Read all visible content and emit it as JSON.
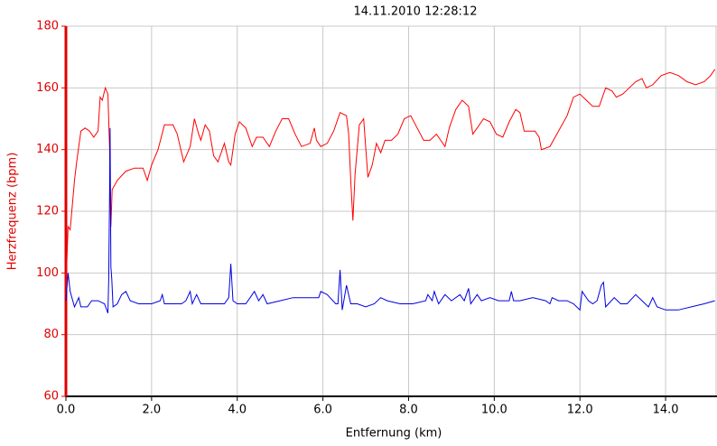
{
  "chart_data": {
    "type": "line",
    "title": "14.11.2010 12:28:12",
    "x_label": "Entfernung (km)",
    "y_label": "Herzfrequenz (bpm)",
    "xlim": [
      0,
      15.2
    ],
    "ylim": [
      60,
      180
    ],
    "xticks": [
      {
        "value": 0,
        "label": "0.0"
      },
      {
        "value": 2,
        "label": "2.0"
      },
      {
        "value": 4,
        "label": "4.0"
      },
      {
        "value": 6,
        "label": "6.0"
      },
      {
        "value": 8,
        "label": "8.0"
      },
      {
        "value": 10,
        "label": "10.0"
      },
      {
        "value": 12,
        "label": "12.0"
      },
      {
        "value": 14,
        "label": "14.0"
      }
    ],
    "yticks": [
      60,
      80,
      100,
      120,
      140,
      160,
      180
    ],
    "grid": true,
    "y_axis_color": "#e00000",
    "series": [
      {
        "color": "#ff0000",
        "x": [
          0.0,
          0.05,
          0.1,
          0.15,
          0.2,
          0.25,
          0.35,
          0.45,
          0.55,
          0.65,
          0.75,
          0.8,
          0.85,
          0.92,
          0.98,
          1.02,
          1.05,
          1.08,
          1.2,
          1.4,
          1.6,
          1.8,
          1.9,
          2.0,
          2.15,
          2.3,
          2.5,
          2.6,
          2.75,
          2.9,
          3.0,
          3.1,
          3.15,
          3.25,
          3.35,
          3.45,
          3.55,
          3.7,
          3.8,
          3.85,
          3.95,
          4.05,
          4.2,
          4.35,
          4.45,
          4.6,
          4.75,
          4.9,
          5.05,
          5.2,
          5.35,
          5.5,
          5.7,
          5.8,
          5.85,
          5.95,
          6.1,
          6.25,
          6.4,
          6.55,
          6.6,
          6.65,
          6.7,
          6.75,
          6.85,
          6.95,
          7.05,
          7.15,
          7.25,
          7.35,
          7.45,
          7.6,
          7.75,
          7.9,
          8.05,
          8.2,
          8.35,
          8.5,
          8.65,
          8.75,
          8.85,
          8.95,
          9.1,
          9.25,
          9.4,
          9.5,
          9.6,
          9.75,
          9.9,
          10.05,
          10.2,
          10.35,
          10.5,
          10.6,
          10.7,
          10.85,
          10.95,
          11.05,
          11.1,
          11.3,
          11.5,
          11.7,
          11.85,
          12.0,
          12.15,
          12.3,
          12.45,
          12.6,
          12.75,
          12.85,
          13.0,
          13.15,
          13.3,
          13.45,
          13.55,
          13.7,
          13.9,
          14.1,
          14.3,
          14.5,
          14.7,
          14.9,
          15.05,
          15.15
        ],
        "values": [
          95,
          115,
          114,
          122,
          130,
          136,
          146,
          147,
          146,
          144,
          146,
          157,
          156,
          160,
          158,
          140,
          115,
          127,
          130,
          133,
          134,
          134,
          130,
          135,
          140,
          148,
          148,
          145,
          136,
          141,
          150,
          145,
          143,
          148,
          146,
          138,
          136,
          142,
          136,
          135,
          145,
          149,
          147,
          141,
          144,
          144,
          141,
          146,
          150,
          150,
          145,
          141,
          142,
          147,
          143,
          141,
          142,
          146,
          152,
          151,
          145,
          130,
          117,
          132,
          148,
          150,
          131,
          135,
          142,
          139,
          143,
          143,
          145,
          150,
          151,
          147,
          143,
          143,
          145,
          143,
          141,
          147,
          153,
          156,
          154,
          145,
          147,
          150,
          149,
          145,
          144,
          149,
          153,
          152,
          146,
          146,
          146,
          144,
          140,
          141,
          146,
          151,
          157,
          158,
          156,
          154,
          154,
          160,
          159,
          157,
          158,
          160,
          162,
          163,
          160,
          161,
          164,
          165,
          164,
          162,
          161,
          162,
          164,
          166
        ]
      },
      {
        "color": "#0000e0",
        "x": [
          0.0,
          0.05,
          0.1,
          0.2,
          0.3,
          0.35,
          0.5,
          0.6,
          0.75,
          0.9,
          0.98,
          1.0,
          1.02,
          1.03,
          1.05,
          1.07,
          1.1,
          1.2,
          1.3,
          1.4,
          1.5,
          1.7,
          2.0,
          2.2,
          2.25,
          2.3,
          2.5,
          2.7,
          2.8,
          2.9,
          2.95,
          3.05,
          3.15,
          3.4,
          3.7,
          3.8,
          3.85,
          3.9,
          4.0,
          4.2,
          4.3,
          4.4,
          4.5,
          4.6,
          4.7,
          5.0,
          5.3,
          5.6,
          5.9,
          5.95,
          6.1,
          6.3,
          6.35,
          6.4,
          6.45,
          6.55,
          6.65,
          6.8,
          7.0,
          7.2,
          7.35,
          7.5,
          7.8,
          8.1,
          8.4,
          8.45,
          8.55,
          8.6,
          8.7,
          8.85,
          9.0,
          9.2,
          9.3,
          9.4,
          9.45,
          9.6,
          9.7,
          9.9,
          10.1,
          10.35,
          10.4,
          10.45,
          10.6,
          10.9,
          11.2,
          11.3,
          11.35,
          11.5,
          11.7,
          11.85,
          12.0,
          12.05,
          12.2,
          12.3,
          12.4,
          12.5,
          12.55,
          12.6,
          12.8,
          12.95,
          13.1,
          13.3,
          13.45,
          13.6,
          13.7,
          13.8,
          14.0,
          14.3,
          14.6,
          14.9,
          15.15
        ],
        "values": [
          91,
          100,
          94,
          89,
          92,
          89,
          89,
          91,
          91,
          90,
          87,
          98,
          127,
          147,
          102,
          98,
          89,
          90,
          93,
          94,
          91,
          90,
          90,
          91,
          93,
          90,
          90,
          90,
          91,
          94,
          90,
          93,
          90,
          90,
          90,
          92,
          103,
          91,
          90,
          90,
          92,
          94,
          91,
          93,
          90,
          91,
          92,
          92,
          92,
          94,
          93,
          90,
          90,
          101,
          88,
          96,
          90,
          90,
          89,
          90,
          92,
          91,
          90,
          90,
          91,
          93,
          91,
          94,
          90,
          93,
          91,
          93,
          91,
          95,
          90,
          93,
          91,
          92,
          91,
          91,
          94,
          91,
          91,
          92,
          91,
          90,
          92,
          91,
          91,
          90,
          88,
          94,
          91,
          90,
          91,
          96,
          97,
          89,
          92,
          90,
          90,
          93,
          91,
          89,
          92,
          89,
          88,
          88,
          89,
          90,
          91
        ]
      }
    ]
  }
}
